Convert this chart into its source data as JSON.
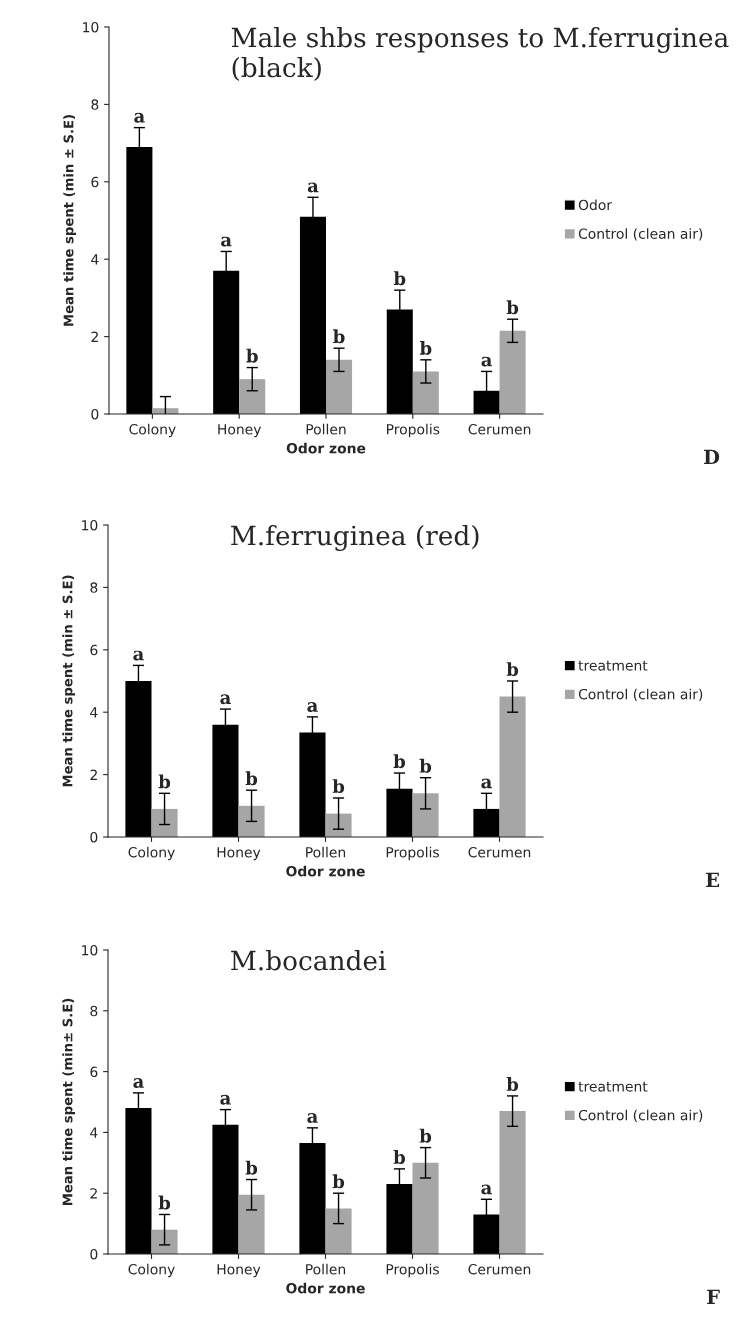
{
  "chart_data": [
    {
      "type": "bar",
      "title": "Male shbs responses to M.ferruginea (black)",
      "xlabel": "Odor zone",
      "ylabel": "Mean time spent (min ± S.E)",
      "categories": [
        "Colony",
        "Honey",
        "Pollen",
        "Propolis",
        "Cerumen"
      ],
      "ylim": [
        0,
        10
      ],
      "yticks": [
        0,
        2,
        4,
        6,
        8,
        10
      ],
      "legend": "right",
      "grid": false,
      "series": [
        {
          "name": "Odor",
          "color": "#000000",
          "values": [
            6.9,
            3.7,
            5.1,
            2.7,
            0.6
          ],
          "errors": [
            0.5,
            0.5,
            0.5,
            0.5,
            0.5
          ],
          "value_labels": [
            "a",
            "a",
            "a",
            "b",
            "a"
          ]
        },
        {
          "name": "Control (clean air)",
          "color": "#a6a6a6",
          "values": [
            0.15,
            0.9,
            1.4,
            1.1,
            2.15
          ],
          "errors": [
            0.3,
            0.3,
            0.3,
            0.3,
            0.3
          ],
          "value_labels": [
            null,
            "b",
            "b",
            "b",
            "b"
          ]
        }
      ],
      "annotations": [
        "D"
      ]
    },
    {
      "type": "bar",
      "title": "M.ferruginea (red)",
      "xlabel": "Odor zone",
      "ylabel": "Mean time spent (min ± S.E)",
      "categories": [
        "Colony",
        "Honey",
        "Pollen",
        "Propolis",
        "Cerumen"
      ],
      "ylim": [
        0,
        10
      ],
      "yticks": [
        0,
        2,
        4,
        6,
        8,
        10
      ],
      "legend": "right",
      "grid": false,
      "series": [
        {
          "name": "treatment",
          "color": "#000000",
          "values": [
            5.0,
            3.6,
            3.35,
            1.55,
            0.9
          ],
          "errors": [
            0.5,
            0.5,
            0.5,
            0.5,
            0.5
          ],
          "value_labels": [
            "a",
            "a",
            "a",
            "b",
            "a"
          ]
        },
        {
          "name": "Control (clean air)",
          "color": "#a6a6a6",
          "values": [
            0.9,
            1.0,
            0.75,
            1.4,
            4.5
          ],
          "errors": [
            0.5,
            0.5,
            0.5,
            0.5,
            0.5
          ],
          "value_labels": [
            "b",
            "b",
            "b",
            "b",
            "b"
          ]
        }
      ],
      "annotations": [
        "E"
      ]
    },
    {
      "type": "bar",
      "title": "M.bocandei",
      "xlabel": "Odor zone",
      "ylabel": "Mean time spent (min± S.E)",
      "categories": [
        "Colony",
        "Honey",
        "Pollen",
        "Propolis",
        "Cerumen"
      ],
      "ylim": [
        0,
        10
      ],
      "yticks": [
        0,
        2,
        4,
        6,
        8,
        10
      ],
      "legend": "right",
      "grid": false,
      "series": [
        {
          "name": "treatment",
          "color": "#000000",
          "values": [
            4.8,
            4.25,
            3.65,
            2.3,
            1.3
          ],
          "errors": [
            0.5,
            0.5,
            0.5,
            0.5,
            0.5
          ],
          "value_labels": [
            "a",
            "a",
            "a",
            "b",
            "a"
          ]
        },
        {
          "name": "Control (clean air)",
          "color": "#a6a6a6",
          "values": [
            0.8,
            1.95,
            1.5,
            3.0,
            4.7
          ],
          "errors": [
            0.5,
            0.5,
            0.5,
            0.5,
            0.5
          ],
          "value_labels": [
            "b",
            "b",
            "b",
            "b",
            "b"
          ]
        }
      ],
      "annotations": [
        "F"
      ]
    }
  ]
}
